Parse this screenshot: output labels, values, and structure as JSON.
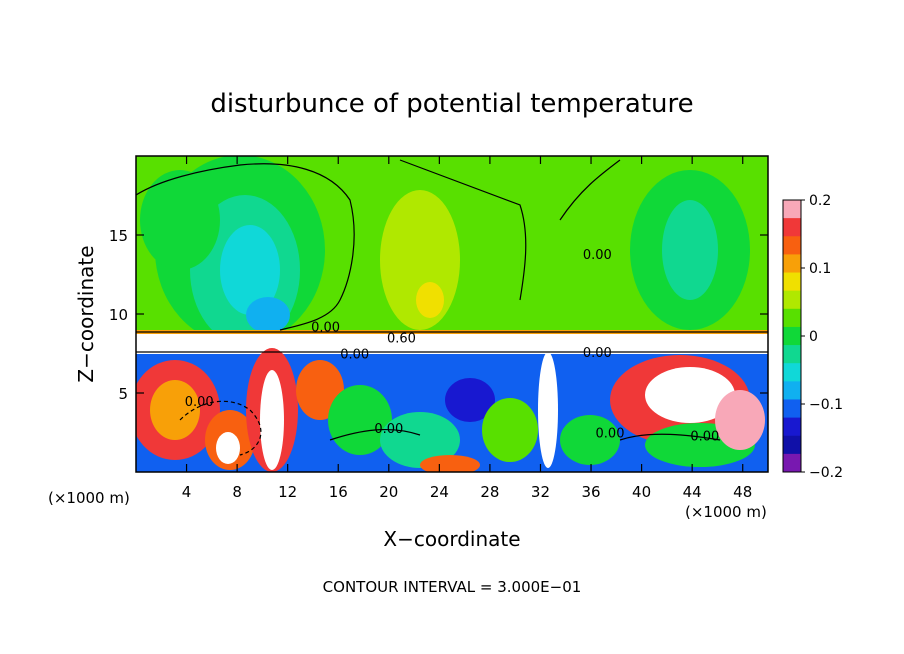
{
  "chart_data": {
    "type": "heatmap",
    "title": "disturbunce of potential temperature",
    "xlabel": "X−coordinate",
    "ylabel": "Z−coordinate",
    "x_unit_label": "(×1000 m)",
    "y_unit_label": "(×1000 m)",
    "xlim": [
      0,
      50
    ],
    "ylim": [
      0,
      20
    ],
    "x_ticks": [
      4,
      8,
      12,
      16,
      20,
      24,
      28,
      32,
      36,
      40,
      44,
      48
    ],
    "y_ticks": [
      5,
      10,
      15
    ],
    "contour_interval_text": "CONTOUR INTERVAL = 3.000E−01",
    "colorbar": {
      "min": -0.2,
      "max": 0.2,
      "tick_values": [
        0.2,
        0.1,
        0,
        -0.1,
        -0.2
      ],
      "tick_labels": [
        "0.2",
        "0.1",
        "0",
        "−0.1",
        "−0.2"
      ],
      "colors": [
        "#f8a8b8",
        "#f03838",
        "#f86010",
        "#f8a008",
        "#f0e000",
        "#b0e800",
        "#58e000",
        "#10d838",
        "#10d890",
        "#10d8d8",
        "#10b0f0",
        "#1060f0",
        "#1818d0",
        "#1010a8",
        "#7818b0"
      ]
    },
    "contour_labels": [
      {
        "text": "0.00",
        "x": 15.0,
        "z": 9.2
      },
      {
        "text": "0.60",
        "x": 21.0,
        "z": 8.5
      },
      {
        "text": "0.00",
        "x": 17.3,
        "z": 7.5
      },
      {
        "text": "0.00",
        "x": 5.0,
        "z": 4.5
      },
      {
        "text": "0.00",
        "x": 20.0,
        "z": 2.8
      },
      {
        "text": "0.00",
        "x": 37.5,
        "z": 2.5
      },
      {
        "text": "0.00",
        "x": 45.0,
        "z": 2.3
      },
      {
        "text": "0.00",
        "x": 36.5,
        "z": 7.6
      },
      {
        "text": "0.00",
        "x": 36.5,
        "z": 13.8
      }
    ]
  }
}
